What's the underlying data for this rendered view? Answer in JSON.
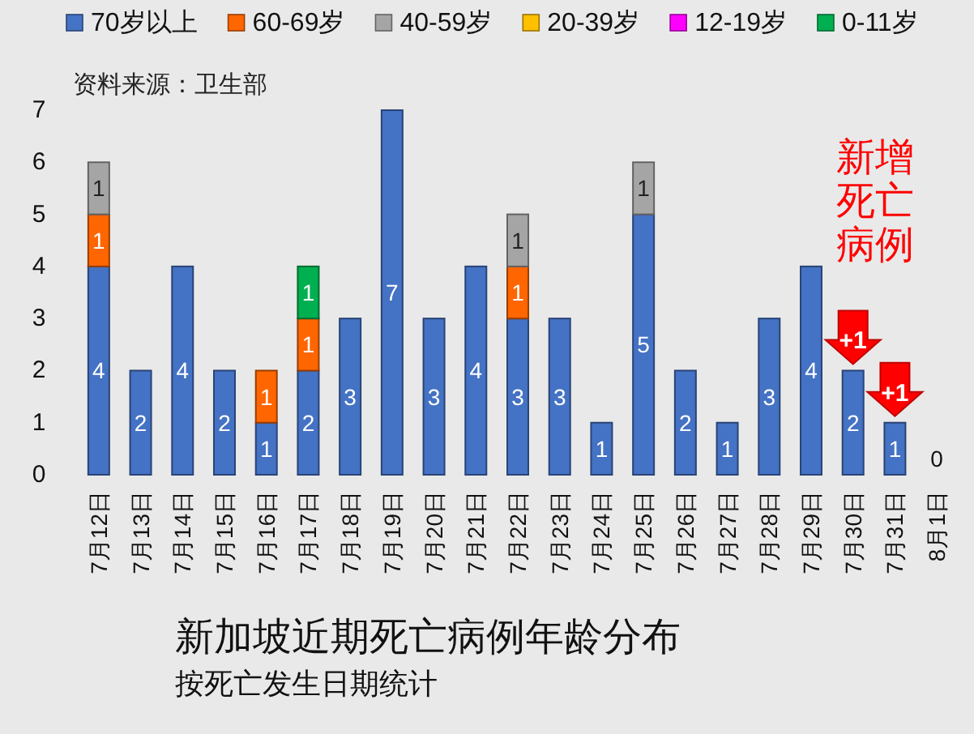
{
  "chart_data": {
    "type": "bar",
    "title": "新加坡近期死亡病例年龄分布",
    "subtitle": "按死亡发生日期统计",
    "annotations": [
      "资料来源：卫生部",
      "新增死亡病例",
      {
        "text": "+1",
        "x": "7月30日",
        "y": 2
      },
      {
        "text": "+1",
        "x": "7月31日",
        "y": 1
      }
    ],
    "categories": [
      "7月12日",
      "7月13日",
      "7月14日",
      "7月15日",
      "7月16日",
      "7月17日",
      "7月18日",
      "7月19日",
      "7月20日",
      "7月21日",
      "7月22日",
      "7月23日",
      "7月24日",
      "7月25日",
      "7月26日",
      "7月27日",
      "7月28日",
      "7月29日",
      "7月30日",
      "7月31日",
      "8月1日"
    ],
    "series": [
      {
        "name": "70岁以上",
        "color": "#4472c4",
        "values": [
          4,
          2,
          4,
          2,
          1,
          2,
          3,
          7,
          3,
          4,
          3,
          3,
          1,
          5,
          2,
          1,
          3,
          4,
          2,
          1,
          0
        ]
      },
      {
        "name": "60-69岁",
        "color": "#ff6600",
        "values": [
          1,
          null,
          null,
          null,
          1,
          1,
          null,
          null,
          null,
          null,
          1,
          null,
          null,
          null,
          null,
          null,
          null,
          null,
          null,
          null,
          null
        ]
      },
      {
        "name": "40-59岁",
        "color": "#a5a5a5",
        "values": [
          1,
          null,
          null,
          null,
          null,
          null,
          null,
          null,
          null,
          null,
          1,
          null,
          null,
          1,
          null,
          null,
          null,
          null,
          null,
          null,
          null
        ]
      },
      {
        "name": "20-39岁",
        "color": "#ffc000",
        "values": [
          null,
          null,
          null,
          null,
          null,
          null,
          null,
          null,
          null,
          null,
          null,
          null,
          null,
          null,
          null,
          null,
          null,
          null,
          null,
          null,
          null
        ]
      },
      {
        "name": "12-19岁",
        "color": "#ff00ff",
        "values": [
          null,
          null,
          null,
          null,
          null,
          null,
          null,
          null,
          null,
          null,
          null,
          null,
          null,
          null,
          null,
          null,
          null,
          null,
          null,
          null,
          null
        ]
      },
      {
        "name": "0-11岁",
        "color": "#00b050",
        "values": [
          null,
          null,
          null,
          null,
          null,
          1,
          null,
          null,
          null,
          null,
          null,
          null,
          null,
          null,
          null,
          null,
          null,
          null,
          null,
          null,
          null
        ]
      }
    ],
    "stacked": true,
    "data_labels": true,
    "legend": "top",
    "ylim": [
      0,
      7
    ],
    "yticks": [
      0,
      1,
      2,
      3,
      4,
      5,
      6,
      7
    ]
  }
}
